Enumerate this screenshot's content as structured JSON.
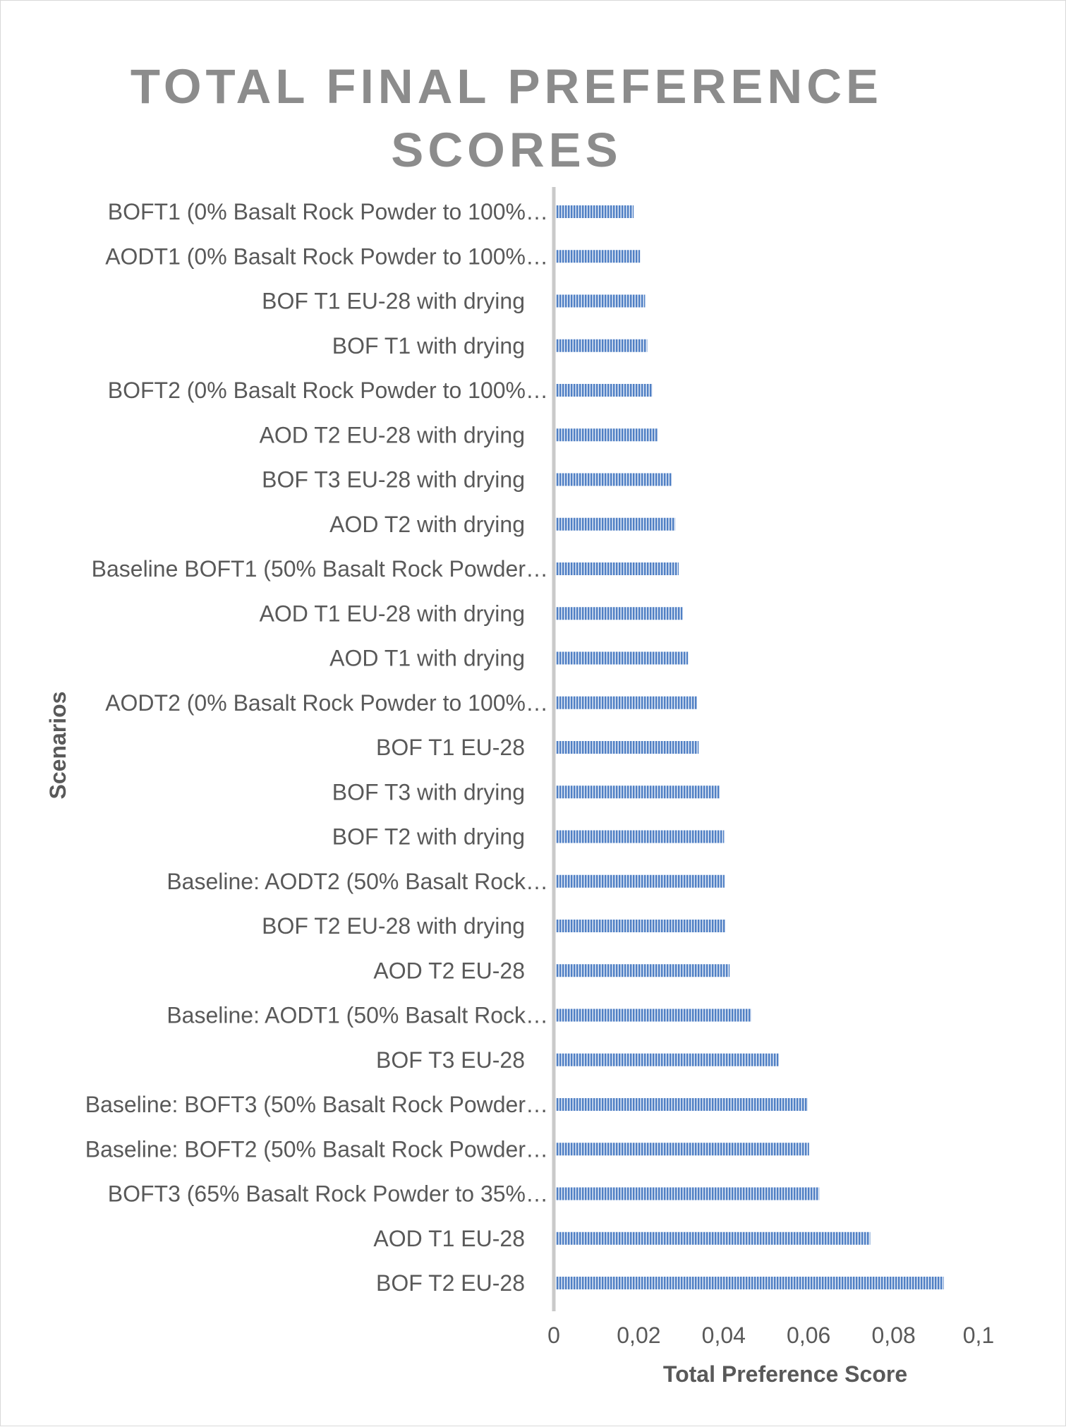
{
  "chart_data": {
    "type": "bar",
    "orientation": "horizontal",
    "title": "TOTAL FINAL PREFERENCE SCORES",
    "title_lines": [
      "TOTAL FINAL PREFERENCE",
      "SCORES"
    ],
    "xlabel": "Total Preference Score",
    "ylabel": "Scenarios",
    "xlim": [
      0,
      0.1
    ],
    "x_ticks": [
      0,
      0.02,
      0.04,
      0.06,
      0.08,
      0.1
    ],
    "x_tick_labels": [
      "0",
      "0,02",
      "0,04",
      "0,06",
      "0,08",
      "0,1"
    ],
    "grid": false,
    "legend": "none",
    "bar_color": "#4f7fc4",
    "bar_pattern": "vertical-stripes",
    "categories": [
      "BOFT1 (0% Basalt Rock Powder to 100%…",
      "AODT1 (0% Basalt Rock Powder to 100%…",
      "BOF T1 EU-28 with drying",
      "BOF T1 with drying",
      "BOFT2 (0% Basalt Rock Powder to 100%…",
      "AOD T2 EU-28 with drying",
      "BOF T3 EU-28 with drying",
      "AOD T2 with drying",
      "Baseline BOFT1 (50% Basalt Rock Powder…",
      "AOD T1 EU-28 with drying",
      "AOD T1 with drying",
      "AODT2 (0% Basalt Rock Powder to 100%…",
      "BOF T1 EU-28",
      "BOF T3 with drying",
      "BOF T2 with drying",
      "Baseline: AODT2 (50% Basalt Rock…",
      "BOF T2 EU-28 with drying",
      "AOD T2 EU-28",
      "Baseline: AODT1 (50% Basalt Rock…",
      "BOF T3 EU-28",
      "Baseline: BOFT3 (50% Basalt Rock Powder…",
      "Baseline: BOFT2 (50% Basalt Rock Powder…",
      "BOFT3 (65% Basalt Rock Powder to 35%…",
      "AOD T1 EU-28",
      "BOF T2 EU-28"
    ],
    "values": [
      0.0183,
      0.0198,
      0.021,
      0.0215,
      0.0227,
      0.024,
      0.0272,
      0.0281,
      0.0289,
      0.0298,
      0.0311,
      0.0332,
      0.0336,
      0.0385,
      0.0396,
      0.0397,
      0.0398,
      0.0409,
      0.046,
      0.0524,
      0.0593,
      0.0596,
      0.062,
      0.074,
      0.0913
    ]
  }
}
